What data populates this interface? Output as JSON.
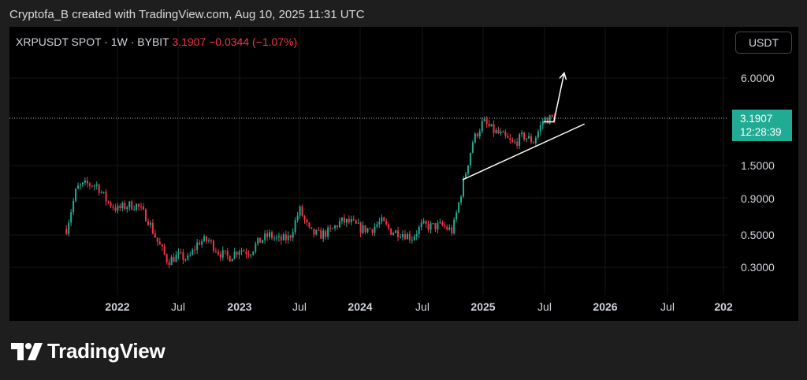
{
  "header": {
    "attribution": "Cryptofa_B created with TradingView.com, Aug 10, 2025 11:31 UTC"
  },
  "legend": {
    "symbol": "XRPUSDT SPOT · 1W · BYBIT",
    "last": "3.1907",
    "change": "−0.0344 (−1.07%)"
  },
  "currency_button": "USDT",
  "price_tag": {
    "price": "3.1907",
    "countdown": "12:28:39"
  },
  "footer": {
    "brand": "TradingView"
  },
  "colors": {
    "up": "#22ab94",
    "down": "#f23645",
    "background": "#000000",
    "annotation": "#ffffff"
  },
  "chart_data": {
    "type": "candlestick",
    "interval": "1W",
    "y_scale": "log",
    "ylim": [
      0.18,
      8.5
    ],
    "y_ticks": [
      "6.0000",
      "1.5000",
      "0.9000",
      "0.5000",
      "0.3000"
    ],
    "x_ticks": [
      {
        "label": "2022",
        "bold": true
      },
      {
        "label": "Jul",
        "bold": false
      },
      {
        "label": "2023",
        "bold": true
      },
      {
        "label": "Jul",
        "bold": false
      },
      {
        "label": "2024",
        "bold": true
      },
      {
        "label": "Jul",
        "bold": false
      },
      {
        "label": "2025",
        "bold": true
      },
      {
        "label": "Jul",
        "bold": false
      },
      {
        "label": "2026",
        "bold": true
      },
      {
        "label": "Jul",
        "bold": false
      },
      {
        "label": "202",
        "bold": true
      }
    ],
    "x_range": [
      "2021-07",
      "2027-02"
    ],
    "closes_approx": [
      [
        "2021-08",
        0.55
      ],
      [
        "2021-09",
        1.05
      ],
      [
        "2021-10",
        1.12
      ],
      [
        "2021-11",
        1.1
      ],
      [
        "2021-12",
        0.85
      ],
      [
        "2022-01",
        0.75
      ],
      [
        "2022-02",
        0.8
      ],
      [
        "2022-03",
        0.8
      ],
      [
        "2022-04",
        0.65
      ],
      [
        "2022-05",
        0.45
      ],
      [
        "2022-06",
        0.33
      ],
      [
        "2022-07",
        0.36
      ],
      [
        "2022-08",
        0.34
      ],
      [
        "2022-09",
        0.45
      ],
      [
        "2022-10",
        0.46
      ],
      [
        "2022-11",
        0.38
      ],
      [
        "2022-12",
        0.35
      ],
      [
        "2023-01",
        0.4
      ],
      [
        "2023-02",
        0.38
      ],
      [
        "2023-03",
        0.45
      ],
      [
        "2023-04",
        0.5
      ],
      [
        "2023-05",
        0.46
      ],
      [
        "2023-06",
        0.48
      ],
      [
        "2023-07",
        0.75
      ],
      [
        "2023-08",
        0.52
      ],
      [
        "2023-09",
        0.5
      ],
      [
        "2023-10",
        0.53
      ],
      [
        "2023-11",
        0.62
      ],
      [
        "2023-12",
        0.61
      ],
      [
        "2024-01",
        0.55
      ],
      [
        "2024-02",
        0.55
      ],
      [
        "2024-03",
        0.62
      ],
      [
        "2024-04",
        0.53
      ],
      [
        "2024-05",
        0.52
      ],
      [
        "2024-06",
        0.48
      ],
      [
        "2024-07",
        0.58
      ],
      [
        "2024-08",
        0.57
      ],
      [
        "2024-09",
        0.58
      ],
      [
        "2024-10",
        0.53
      ],
      [
        "2024-11",
        1.1
      ],
      [
        "2024-12",
        2.2
      ],
      [
        "2025-01",
        3.0
      ],
      [
        "2025-02",
        2.6
      ],
      [
        "2025-03",
        2.4
      ],
      [
        "2025-04",
        2.1
      ],
      [
        "2025-05",
        2.4
      ],
      [
        "2025-06",
        2.2
      ],
      [
        "2025-07",
        3.1
      ],
      [
        "2025-08",
        3.1907
      ]
    ],
    "annotations": [
      {
        "type": "trendline",
        "from": [
          "2024-11",
          1.2
        ],
        "to": [
          "2025-11",
          2.9
        ]
      },
      {
        "type": "arrow",
        "points": [
          [
            "2025-07",
            3.0
          ],
          [
            "2025-08",
            3.0
          ],
          [
            "2025-09",
            6.5
          ]
        ]
      }
    ]
  }
}
